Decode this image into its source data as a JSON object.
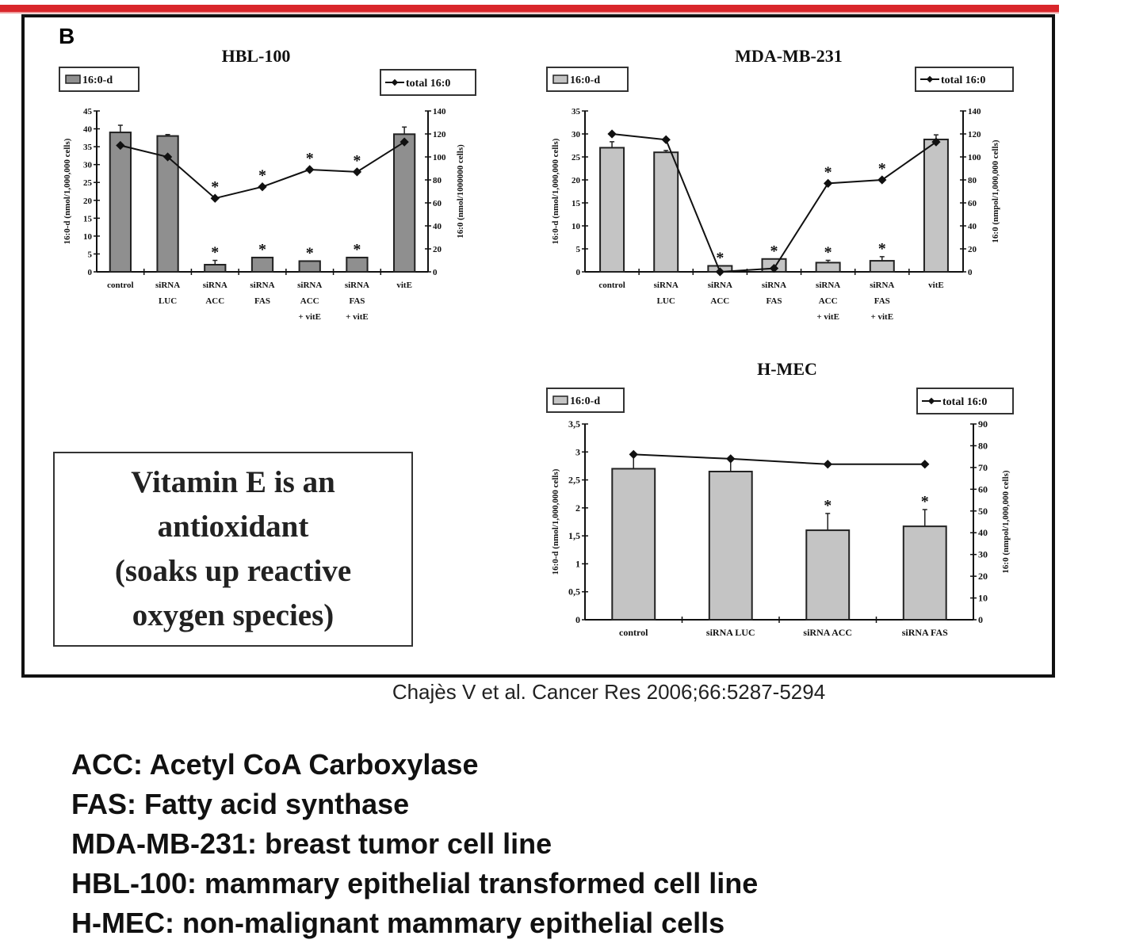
{
  "panel_letter": "B",
  "note_box": {
    "lines": [
      "Vitamin E is an",
      "antioxidant",
      "(soaks up reactive",
      "oxygen species)"
    ]
  },
  "citation": "Chajès V et al. Cancer Res 2006;66:5287-5294",
  "definitions": [
    "ACC: Acetyl CoA Carboxylase",
    "FAS: Fatty acid synthase",
    "MDA-MB-231: breast tumor cell line",
    "HBL-100: mammary epithelial transformed cell line",
    "H-MEC: non-malignant mammary epithelial cells"
  ],
  "colors": {
    "accent_line": "#d9262b",
    "bar_dark": "#8f8f8f",
    "bar_light": "#c4c4c4",
    "line": "#111111"
  },
  "chart_data": [
    {
      "type": "bar+line",
      "title": "HBL-100",
      "categories": [
        [
          "control"
        ],
        [
          "siRNA",
          "LUC"
        ],
        [
          "siRNA",
          "ACC"
        ],
        [
          "siRNA",
          "FAS"
        ],
        [
          "siRNA",
          "ACC",
          "+ vitE"
        ],
        [
          "siRNA",
          "FAS",
          "+ vitE"
        ],
        [
          "vitE"
        ]
      ],
      "series": [
        {
          "name": "16:0-d",
          "kind": "bar",
          "axis": "left",
          "values": [
            39,
            38,
            2,
            4,
            3,
            4,
            38.5
          ],
          "errors": [
            2,
            0.4,
            1.2,
            0,
            0,
            0,
            2
          ],
          "significant": [
            false,
            false,
            true,
            true,
            true,
            true,
            false
          ]
        },
        {
          "name": "total 16:0",
          "kind": "line",
          "axis": "right",
          "values": [
            110,
            100,
            64,
            74,
            89,
            87,
            113
          ],
          "significant": [
            false,
            false,
            true,
            true,
            true,
            true,
            false
          ]
        }
      ],
      "ylabel_left": "16:0-d (nmol/1,000,000 cells)",
      "ylabel_right": "16:0 (nmol/1000000 cells)",
      "ylim_left": [
        0,
        45
      ],
      "yticks_left": [
        "0",
        "5",
        "10",
        "15",
        "20",
        "25",
        "30",
        "35",
        "40",
        "45"
      ],
      "ylim_right": [
        0,
        140
      ],
      "yticks_right": [
        "0",
        "20",
        "40",
        "60",
        "80",
        "100",
        "120",
        "140"
      ],
      "bar_color": "#8f8f8f",
      "legend": [
        "top-left",
        "top-right"
      ]
    },
    {
      "type": "bar+line",
      "title": "MDA-MB-231",
      "categories": [
        [
          "control"
        ],
        [
          "siRNA",
          "LUC"
        ],
        [
          "siRNA",
          "ACC"
        ],
        [
          "siRNA",
          "FAS"
        ],
        [
          "siRNA",
          "ACC",
          "+ vitE"
        ],
        [
          "siRNA",
          "FAS",
          "+ vitE"
        ],
        [
          "vitE"
        ]
      ],
      "series": [
        {
          "name": "16:0-d",
          "kind": "bar",
          "axis": "left",
          "values": [
            27,
            26,
            1.3,
            2.8,
            2,
            2.4,
            28.8
          ],
          "errors": [
            1.3,
            0.4,
            0,
            0,
            0.5,
            0.9,
            1
          ],
          "significant": [
            false,
            false,
            true,
            true,
            true,
            true,
            false
          ]
        },
        {
          "name": "total 16:0",
          "kind": "line",
          "axis": "right",
          "values": [
            120,
            115,
            0,
            3,
            77,
            80,
            113
          ],
          "significant": [
            false,
            false,
            false,
            false,
            true,
            true,
            false
          ]
        }
      ],
      "ylabel_left": "16:0-d (nmol/1,000,000 cells)",
      "ylabel_right": "16:0 (nmpol/1,000,000 cells)",
      "ylim_left": [
        0,
        35
      ],
      "yticks_left": [
        "0",
        "5",
        "10",
        "15",
        "20",
        "25",
        "30",
        "35"
      ],
      "ylim_right": [
        0,
        140
      ],
      "yticks_right": [
        "0",
        "20",
        "40",
        "60",
        "80",
        "100",
        "120",
        "140"
      ],
      "bar_color": "#c4c4c4",
      "legend": [
        "top-left",
        "top-right"
      ]
    },
    {
      "type": "bar+line",
      "title": "H-MEC",
      "categories": [
        [
          "control"
        ],
        [
          "siRNA LUC"
        ],
        [
          "siRNA ACC"
        ],
        [
          "siRNA FAS"
        ]
      ],
      "series": [
        {
          "name": "16:0-d",
          "kind": "bar",
          "axis": "left",
          "values": [
            2.7,
            2.65,
            1.6,
            1.67
          ],
          "errors": [
            0.25,
            0.2,
            0.3,
            0.3
          ],
          "significant": [
            false,
            false,
            true,
            true
          ]
        },
        {
          "name": "total 16:0",
          "kind": "line",
          "axis": "right",
          "values": [
            76,
            74,
            71.5,
            71.5
          ],
          "significant": [
            false,
            false,
            false,
            false
          ]
        }
      ],
      "ylabel_left": "16:0-d (nmol/1,000,000 cells)",
      "ylabel_right": "16:0 (nmpol/1,000,000 cells)",
      "ylim_left": [
        0,
        3.5
      ],
      "yticks_left": [
        "0",
        "0,5",
        "1",
        "1,5",
        "2",
        "2,5",
        "3",
        "3,5"
      ],
      "ylim_right": [
        0,
        90
      ],
      "yticks_right": [
        "0",
        "10",
        "20",
        "30",
        "40",
        "50",
        "60",
        "70",
        "80",
        "90"
      ],
      "bar_color": "#c4c4c4",
      "legend": [
        "top-left",
        "top-right"
      ]
    }
  ]
}
